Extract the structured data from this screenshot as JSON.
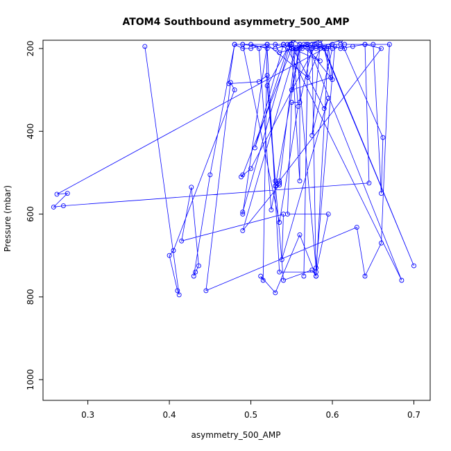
{
  "chart_data": {
    "type": "line",
    "title": "ATOM4 Southbound asymmetry_500_AMP",
    "xlabel": "asymmetry_500_AMP",
    "ylabel": "Pressure (mbar)",
    "xlim": [
      0.245,
      0.72
    ],
    "ylim": [
      1050,
      180
    ],
    "y_inverted": true,
    "x_ticks": [
      0.3,
      0.4,
      0.5,
      0.6,
      0.7
    ],
    "x_tick_labels": [
      "0.3",
      "0.4",
      "0.5",
      "0.6",
      "0.7"
    ],
    "y_ticks": [
      200,
      400,
      600,
      800,
      1000
    ],
    "y_tick_labels": [
      "200",
      "400",
      "600",
      "800",
      "1000"
    ],
    "grid": false,
    "series": [
      {
        "color": "#0000ff",
        "marker": "open-circle",
        "x": [
          0.37,
          0.412,
          0.41,
          0.4,
          0.405,
          0.48,
          0.475,
          0.445,
          0.63,
          0.64,
          0.66,
          0.67,
          0.575,
          0.58,
          0.56,
          0.53,
          0.512,
          0.515,
          0.52,
          0.57,
          0.585,
          0.545,
          0.552,
          0.56,
          0.58,
          0.61,
          0.662,
          0.66,
          0.65,
          0.615,
          0.6,
          0.593,
          0.568,
          0.585,
          0.7,
          0.59,
          0.262,
          0.275,
          0.258,
          0.27,
          0.645,
          0.64,
          0.625,
          0.61,
          0.603,
          0.58,
          0.556,
          0.57,
          0.565,
          0.57,
          0.6,
          0.595,
          0.58,
          0.575,
          0.54,
          0.52,
          0.545,
          0.685,
          0.57,
          0.535,
          0.53,
          0.545,
          0.505,
          0.54,
          0.585,
          0.56,
          0.55,
          0.598,
          0.59,
          0.578,
          0.585,
          0.575,
          0.6,
          0.555,
          0.535,
          0.535,
          0.66,
          0.64,
          0.61,
          0.615,
          0.58,
          0.5,
          0.488,
          0.49,
          0.55,
          0.548,
          0.49,
          0.49,
          0.52,
          0.54,
          0.49,
          0.535,
          0.558,
          0.552,
          0.59,
          0.595,
          0.538,
          0.54,
          0.415,
          0.427,
          0.436,
          0.432,
          0.43,
          0.45,
          0.48,
          0.49,
          0.5,
          0.52,
          0.54,
          0.55,
          0.555,
          0.49,
          0.535,
          0.53,
          0.535,
          0.53,
          0.52,
          0.51,
          0.473,
          0.48,
          0.49,
          0.53,
          0.55,
          0.55,
          0.56,
          0.56,
          0.563,
          0.565,
          0.56,
          0.525,
          0.51,
          0.5,
          0.52,
          0.535,
          0.58,
          0.595,
          0.545,
          0.55,
          0.56,
          0.575
        ],
        "y": [
          195,
          795,
          785,
          700,
          688,
          300,
          282,
          785,
          632,
          750,
          670,
          190,
          190,
          750,
          650,
          790,
          750,
          760,
          190,
          270,
          200,
          190,
          180,
          190,
          200,
          180,
          415,
          550,
          190,
          190,
          190,
          200,
          190,
          180,
          725,
          200,
          552,
          550,
          583,
          580,
          525,
          190,
          195,
          200,
          195,
          730,
          200,
          190,
          750,
          200,
          275,
          195,
          750,
          735,
          760,
          290,
          200,
          760,
          190,
          210,
          190,
          200,
          440,
          190,
          230,
          190,
          300,
          270,
          200,
          190,
          190,
          410,
          200,
          200,
          525,
          520,
          200,
          190,
          190,
          200,
          190,
          490,
          510,
          505,
          200,
          190,
          595,
          600,
          190,
          190,
          190,
          620,
          340,
          200,
          345,
          320,
          710,
          600,
          665,
          535,
          725,
          740,
          750,
          505,
          190,
          200,
          200,
          190,
          190,
          190,
          200,
          640,
          530,
          532,
          525,
          520,
          265,
          280,
          285,
          190,
          190,
          200,
          190,
          200,
          520,
          190,
          200,
          190,
          200,
          590,
          200,
          190,
          200,
          740,
          740,
          600,
          600,
          330,
          330,
          200
        ]
      }
    ]
  }
}
